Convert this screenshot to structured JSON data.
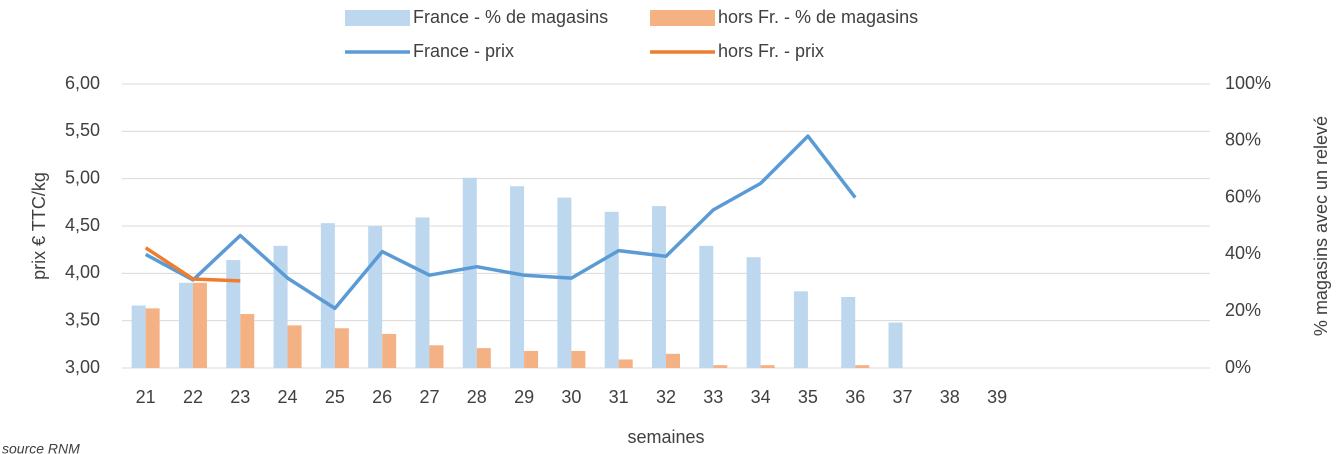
{
  "chart_data": {
    "type": "combo",
    "x_label": "semaines",
    "y_label": "prix € TTC/kg",
    "y2_label": "% magasins avec un relevé",
    "source": "source RNM",
    "categories": [
      "21",
      "22",
      "23",
      "24",
      "25",
      "26",
      "27",
      "28",
      "29",
      "30",
      "31",
      "32",
      "33",
      "34",
      "35",
      "36",
      "37",
      "38",
      "39",
      null,
      null,
      null,
      null
    ],
    "ylim": [
      3,
      6
    ],
    "yticks": [
      {
        "value": 3,
        "label": "3,00"
      },
      {
        "value": 3.5,
        "label": "3,50"
      },
      {
        "value": 4,
        "label": "4,00"
      },
      {
        "value": 4.5,
        "label": "4,50"
      },
      {
        "value": 5,
        "label": "5,00"
      },
      {
        "value": 5.5,
        "label": "5,50"
      },
      {
        "value": 6,
        "label": "6,00"
      }
    ],
    "y2lim": [
      0,
      100
    ],
    "y2ticks": [
      {
        "value": 0,
        "label": "0%"
      },
      {
        "value": 20,
        "label": "20%"
      },
      {
        "value": 40,
        "label": "40%"
      },
      {
        "value": 60,
        "label": "60%"
      },
      {
        "value": 80,
        "label": "80%"
      },
      {
        "value": 100,
        "label": "100%"
      }
    ],
    "grid": true,
    "legend": "top",
    "series": [
      {
        "name": "France - % de magasins",
        "type": "bar",
        "axis": "y2",
        "color": "#bdd7ee",
        "values": [
          22,
          30,
          38,
          43,
          51,
          50,
          53,
          67,
          64,
          60,
          55,
          57,
          43,
          39,
          27,
          25,
          16,
          null,
          null,
          null,
          null,
          null,
          null
        ]
      },
      {
        "name": "hors Fr.  - % de magasins",
        "type": "bar",
        "axis": "y2",
        "color": "#f4b183",
        "values": [
          21,
          30,
          19,
          15,
          14,
          12,
          8,
          7,
          6,
          6,
          3,
          5,
          1,
          1,
          null,
          1,
          null,
          null,
          null,
          null,
          null,
          null,
          null
        ]
      },
      {
        "name": "France - prix",
        "type": "line",
        "color": "#5b9bd5",
        "values": [
          4.2,
          3.93,
          4.4,
          3.95,
          3.63,
          4.23,
          3.98,
          4.07,
          3.98,
          3.95,
          4.24,
          4.18,
          4.67,
          4.95,
          5.45,
          4.8,
          null,
          null,
          null,
          null,
          null,
          null,
          null
        ]
      },
      {
        "name": "hors Fr.  - prix",
        "type": "line",
        "color": "#ed7d31",
        "values": [
          4.27,
          3.94,
          3.92,
          null,
          null,
          null,
          null,
          null,
          null,
          null,
          null,
          null,
          null,
          null,
          null,
          null,
          null,
          null,
          null,
          null,
          null,
          null,
          null
        ]
      }
    ]
  }
}
